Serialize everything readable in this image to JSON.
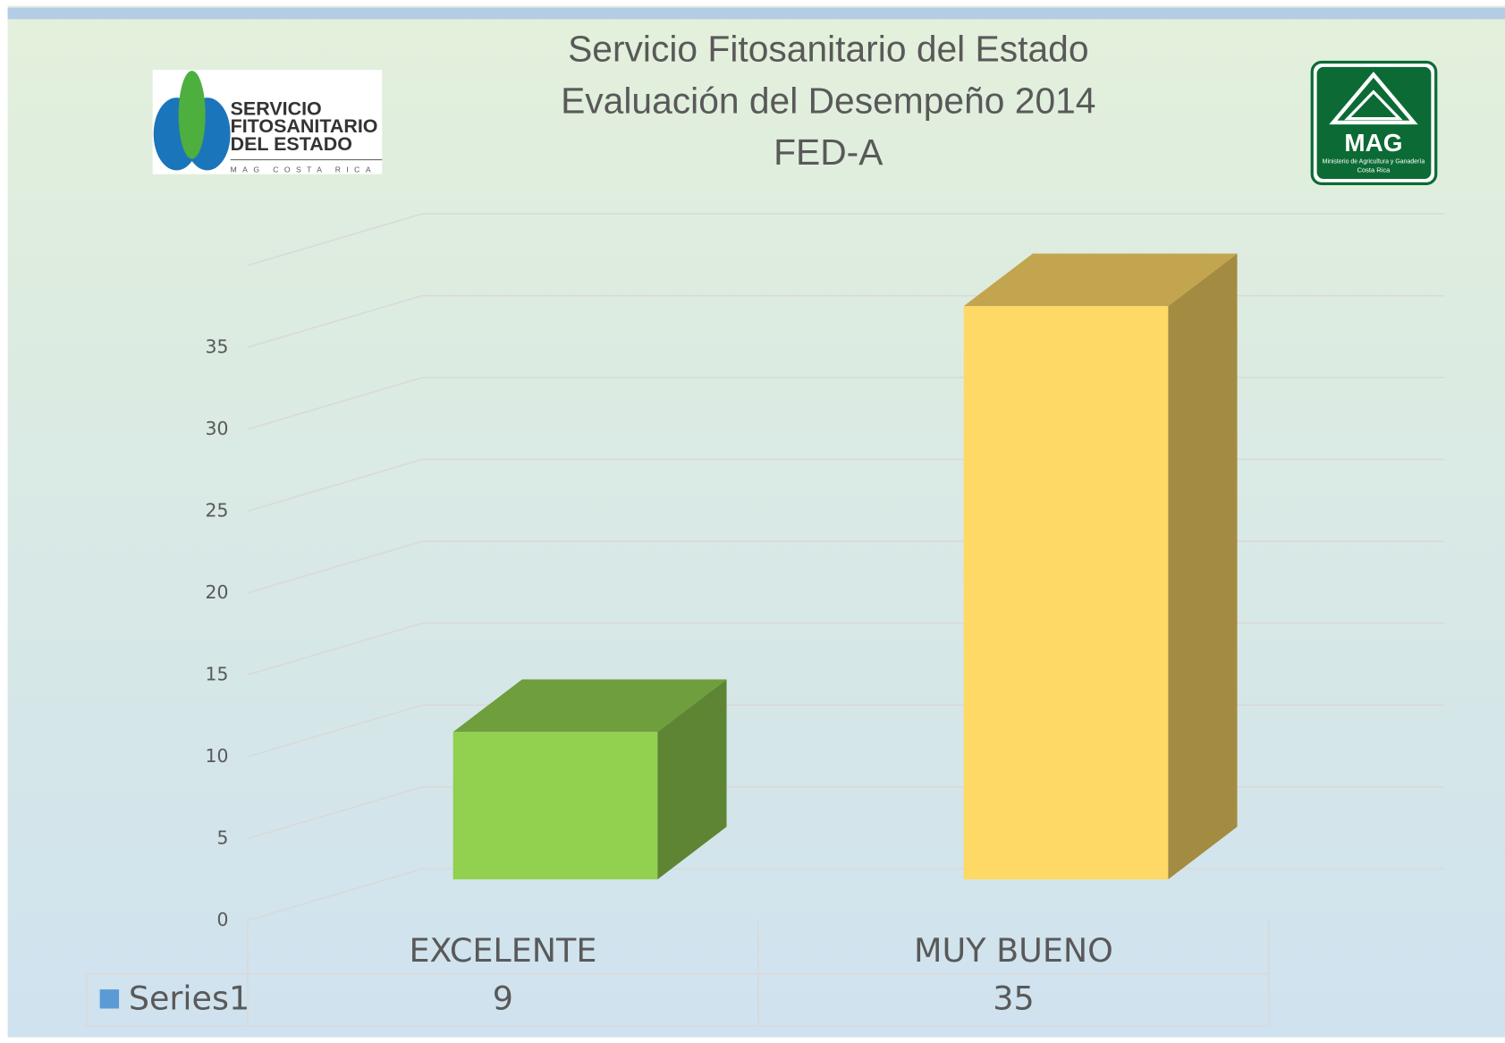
{
  "chart_data": {
    "type": "bar3d",
    "title": [
      "Servicio Fitosanitario del Estado",
      "Evaluación del Desempeño 2014",
      "FED-A"
    ],
    "categories": [
      "EXCELENTE",
      "MUY BUENO"
    ],
    "series": [
      {
        "name": "Series1",
        "color": "#5b9bd5",
        "values": [
          9,
          35
        ]
      }
    ],
    "colors": [
      "#92d050",
      "#ffd966"
    ],
    "ylim": [
      0,
      40
    ],
    "yticks": [
      0,
      5,
      10,
      15,
      20,
      25,
      30,
      35
    ],
    "grid": true,
    "data_table": true
  },
  "logos": {
    "left": {
      "lines": [
        "SERVICIO",
        "FITOSANITARIO",
        "DEL ESTADO"
      ],
      "tagline": "MAG COSTA RICA"
    },
    "right": {
      "name": "MAG",
      "caption": [
        "Ministerio de Agricultura y Ganadería",
        "Costa Rica"
      ]
    }
  }
}
